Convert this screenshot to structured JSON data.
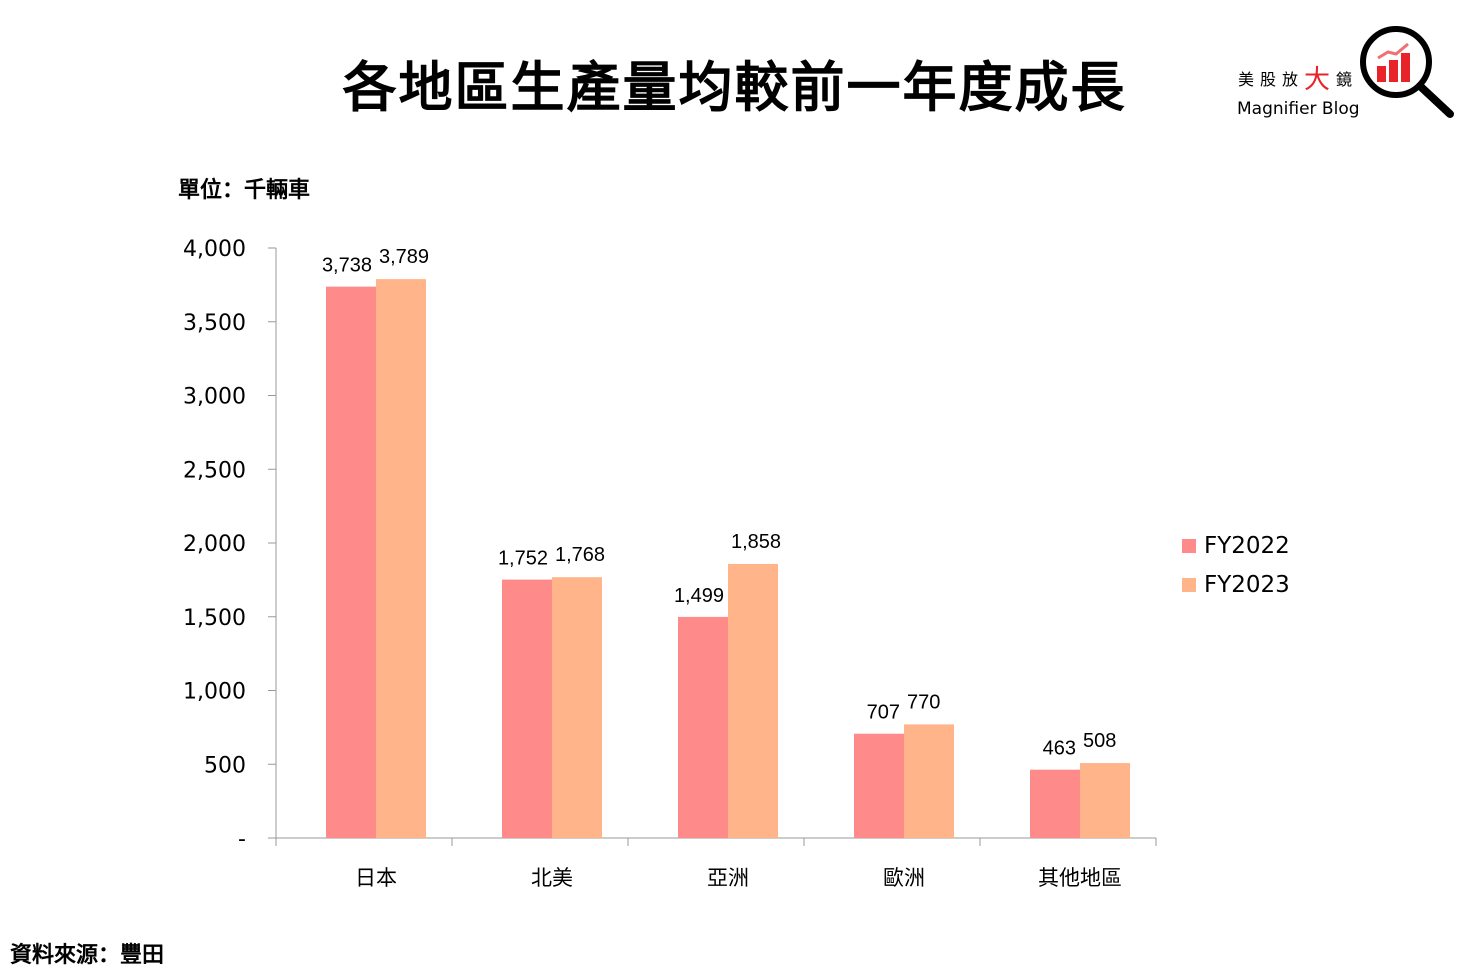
{
  "logo": {
    "zh_prefix": "美股放",
    "zh_big": "大",
    "zh_suffix": "鏡",
    "en": "Magnifier Blog"
  },
  "unit_label": "單位：千輛車",
  "source_label": "資料來源：豐田",
  "chart_data": {
    "type": "bar",
    "title": "各地區生產量均較前一年度成長",
    "xlabel": "",
    "ylabel": "單位：千輛車",
    "categories": [
      "日本",
      "北美",
      "亞洲",
      "歐洲",
      "其他地區"
    ],
    "series": [
      {
        "name": "FY2022",
        "color": "#FF8A8A",
        "values": [
          3738,
          1752,
          1499,
          707,
          463
        ],
        "labels": [
          "3,738",
          "1,752",
          "1,499",
          "707",
          "463"
        ]
      },
      {
        "name": "FY2023",
        "color": "#FFB48A",
        "values": [
          3789,
          1768,
          1858,
          770,
          508
        ],
        "labels": [
          "3,789",
          "1,768",
          "1,858",
          "770",
          "508"
        ]
      }
    ],
    "ylim": [
      0,
      4000
    ],
    "yticks": [
      0,
      500,
      1000,
      1500,
      2000,
      2500,
      3000,
      3500,
      4000
    ],
    "ytick_labels": [
      "-",
      "500",
      "1,000",
      "1,500",
      "2,000",
      "2,500",
      "3,000",
      "3,500",
      "4,000"
    ],
    "grid": false,
    "legend_position": "right"
  }
}
